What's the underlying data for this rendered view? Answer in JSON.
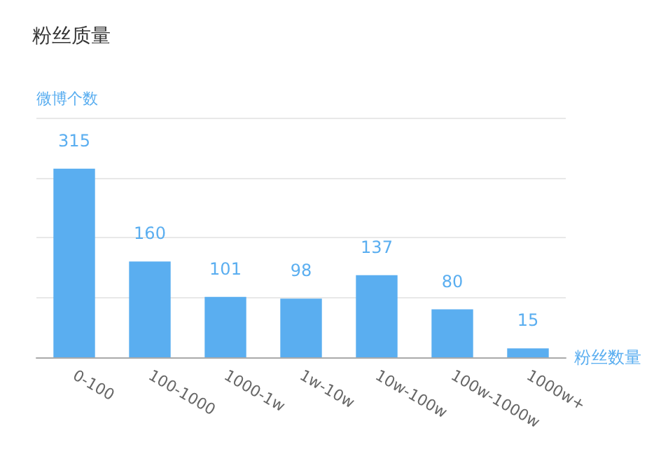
{
  "chart_data": {
    "type": "bar",
    "title": "粉丝质量",
    "ylabel": "微博个数",
    "xlabel": "粉丝数量",
    "categories": [
      "0-100",
      "100-1000",
      "1000-1w",
      "1w-10w",
      "10w-100w",
      "100w-1000w",
      "1000w+"
    ],
    "values": [
      315,
      160,
      101,
      98,
      137,
      80,
      15
    ],
    "color": "#5aaef0",
    "ylim": [
      0,
      400
    ],
    "yticks": [
      {
        "value": 0,
        "label": null
      },
      {
        "value": 100,
        "label": null
      },
      {
        "value": 200,
        "label": null
      },
      {
        "value": 300,
        "label": null
      },
      {
        "value": 400,
        "label": null
      }
    ],
    "grid": "y",
    "tick_labels": "x",
    "data_labels": true
  }
}
